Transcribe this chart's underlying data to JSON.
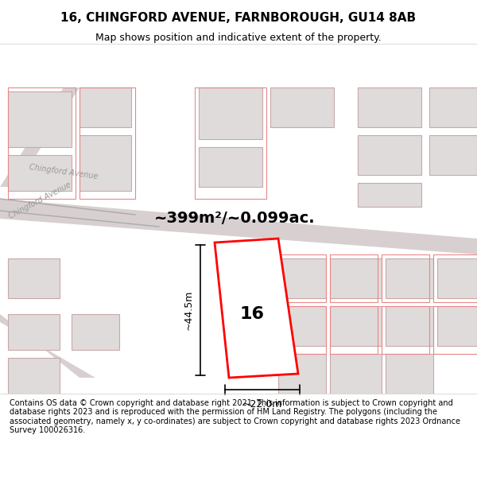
{
  "title_line1": "16, CHINGFORD AVENUE, FARNBOROUGH, GU14 8AB",
  "title_line2": "Map shows position and indicative extent of the property.",
  "area_label": "~399m²/~0.099ac.",
  "number_label": "16",
  "dim_height": "~44.5m",
  "dim_width": "~22.0m",
  "street_label1": "Chingford Avenue",
  "street_label2": "Chingford Avenue",
  "footer_text": "Contains OS data © Crown copyright and database right 2021. This information is subject to Crown copyright and database rights 2023 and is reproduced with the permission of HM Land Registry. The polygons (including the associated geometry, namely x, y co-ordinates) are subject to Crown copyright and database rights 2023 Ordnance Survey 100026316.",
  "bg_color": "#f5f0f0",
  "map_bg": "#f5f0f0",
  "road_color": "#d8d0d0",
  "building_fill": "#e0dbdb",
  "building_edge": "#c8a8a8",
  "highlight_fill": "#ffffff",
  "highlight_edge": "#ff0000",
  "figsize": [
    6.0,
    6.25
  ],
  "dpi": 100
}
